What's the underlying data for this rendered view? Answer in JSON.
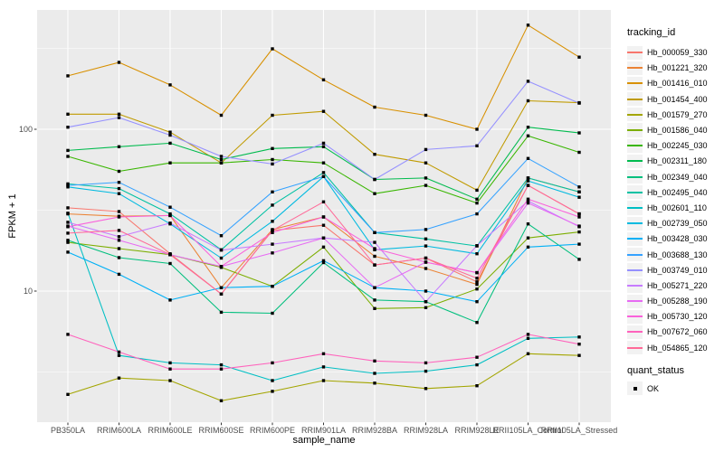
{
  "chart_data": {
    "type": "line",
    "title": "",
    "xlabel": "sample_name",
    "ylabel": "FPKM + 1",
    "y_scale": "log10",
    "ylim": [
      1.55,
      546
    ],
    "grid": true,
    "legend_position": "right",
    "panel_bg": "#EBEBEB",
    "grid_color": "#FFFFFF",
    "tick_label_color": "#4D4D4D",
    "marker": "black-square",
    "y_ticks": [
      {
        "label": "100",
        "value": 100
      },
      {
        "label": "10",
        "value": 10
      }
    ],
    "y_minor_gridlines": [
      3.162,
      31.62,
      316.2
    ],
    "categories": [
      "PB350LA",
      "RRIM600LA",
      "RRIM600LE",
      "RRIM600SE",
      "RRIM600PE",
      "RRIM901LA",
      "RRIM928BA",
      "RRIM928LA",
      "RRIM928LE",
      "RRII105LA_Control",
      "RRII105LA_Stressed"
    ],
    "series": [
      {
        "name": "Hb_000059_330",
        "color": "#F8766D",
        "values": [
          32.7,
          31,
          17,
          9.6,
          23.7,
          25.5,
          14.5,
          16,
          11.4,
          45,
          30
        ]
      },
      {
        "name": "Hb_001221_320",
        "color": "#EB8335",
        "values": [
          30,
          29,
          29.3,
          10.5,
          24,
          28.7,
          16.4,
          13.8,
          11,
          50,
          41
        ]
      },
      {
        "name": "Hb_001416_010",
        "color": "#D89000",
        "values": [
          214,
          259,
          188,
          122,
          314,
          202,
          137,
          122,
          100,
          440,
          279
        ]
      },
      {
        "name": "Hb_001454_400",
        "color": "#C09B00",
        "values": [
          124,
          124,
          96,
          62,
          122,
          129,
          70,
          62,
          42,
          150,
          146
        ]
      },
      {
        "name": "Hb_001579_270",
        "color": "#A3A500",
        "values": [
          2.3,
          2.9,
          2.8,
          2.1,
          2.4,
          2.8,
          2.7,
          2.5,
          2.6,
          4.1,
          4.0
        ]
      },
      {
        "name": "Hb_001586_040",
        "color": "#7CAE00",
        "values": [
          20,
          18.3,
          16.8,
          14,
          10.7,
          18.7,
          7.8,
          7.9,
          10.3,
          21.3,
          23.2
        ]
      },
      {
        "name": "Hb_002245_030",
        "color": "#39B600",
        "values": [
          68,
          55,
          62,
          62,
          65,
          62,
          40,
          45,
          35,
          91,
          72
        ]
      },
      {
        "name": "Hb_002311_180",
        "color": "#00BB4E",
        "values": [
          74,
          78,
          82,
          65,
          76,
          78,
          49,
          50,
          37,
          103,
          95
        ]
      },
      {
        "name": "Hb_002349_040",
        "color": "#00BF7D",
        "values": [
          20.6,
          16.1,
          14.8,
          7.4,
          7.3,
          15,
          8.8,
          8.6,
          6.4,
          26,
          15.7
        ]
      },
      {
        "name": "Hb_002495_040",
        "color": "#00C1A3",
        "values": [
          46,
          43,
          30,
          18,
          34,
          54,
          23,
          21,
          19,
          50,
          41
        ]
      },
      {
        "name": "Hb_002601_110",
        "color": "#00BFC4",
        "values": [
          30.3,
          4.0,
          3.6,
          3.5,
          2.8,
          3.4,
          3.1,
          3.2,
          3.5,
          5.1,
          5.2
        ]
      },
      {
        "name": "Hb_002739_050",
        "color": "#00BAE0",
        "values": [
          44,
          40,
          26,
          16,
          27,
          51,
          18,
          19,
          17,
          48,
          38
        ]
      },
      {
        "name": "Hb_003428_030",
        "color": "#00B0F6",
        "values": [
          17.4,
          12.7,
          8.8,
          10.5,
          10.7,
          15.4,
          10.5,
          10,
          8.6,
          18.7,
          19.5
        ]
      },
      {
        "name": "Hb_003688_130",
        "color": "#35A2FF",
        "values": [
          45,
          47,
          33,
          22,
          41,
          51,
          23,
          24,
          30,
          66,
          44
        ]
      },
      {
        "name": "Hb_003749_010",
        "color": "#9590FF",
        "values": [
          103,
          118,
          92,
          68,
          61,
          82,
          49,
          75,
          79,
          198,
          145
        ]
      },
      {
        "name": "Hb_005271_220",
        "color": "#C77CFF",
        "values": [
          26.6,
          21.7,
          26.3,
          17.9,
          19.5,
          21.3,
          20,
          8.6,
          19.1,
          36,
          25
        ]
      },
      {
        "name": "Hb_005288_190",
        "color": "#E76BF3",
        "values": [
          25.2,
          20.6,
          16.8,
          14.2,
          17.2,
          21.3,
          10.5,
          15.1,
          13,
          35,
          25.2
        ]
      },
      {
        "name": "Hb_005730_120",
        "color": "#FA62DB",
        "values": [
          25,
          28.7,
          29.3,
          14.2,
          23,
          28.7,
          18.3,
          15.1,
          13,
          37,
          28.7
        ]
      },
      {
        "name": "Hb_007672_060",
        "color": "#FF62BC",
        "values": [
          5.4,
          4.2,
          3.3,
          3.3,
          3.6,
          4.1,
          3.7,
          3.6,
          3.9,
          5.4,
          4.7
        ]
      },
      {
        "name": "Hb_054865_120",
        "color": "#FF6A98",
        "values": [
          22.8,
          23.7,
          16.8,
          9.6,
          23.7,
          35.6,
          14.5,
          16,
          12,
          45,
          30
        ]
      }
    ],
    "legend": {
      "color_title": "tracking_id",
      "shape_title": "quant_status",
      "shape_items": [
        {
          "label": "OK",
          "shape": "square",
          "color": "#000000"
        }
      ]
    }
  }
}
